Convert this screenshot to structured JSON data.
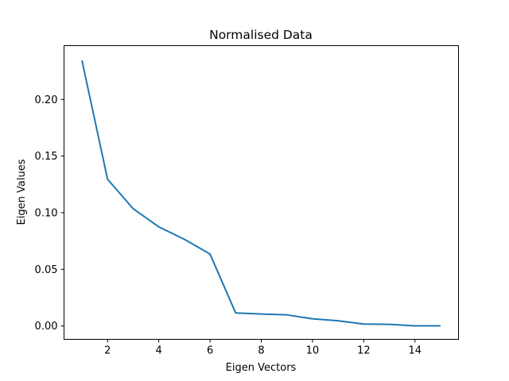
{
  "chart_data": {
    "type": "line",
    "title": "Normalised Data",
    "xlabel": "Eigen Vectors",
    "ylabel": "Eigen Values",
    "xlim": [
      0.3,
      15.7
    ],
    "ylim": [
      -0.0118,
      0.2475
    ],
    "xticks": [
      "2",
      "4",
      "6",
      "8",
      "10",
      "12",
      "14"
    ],
    "xtick_values": [
      2,
      4,
      6,
      8,
      10,
      12,
      14
    ],
    "yticks": [
      "0.00",
      "0.05",
      "0.10",
      "0.15",
      "0.20"
    ],
    "ytick_values": [
      0.0,
      0.05,
      0.1,
      0.15,
      0.2
    ],
    "grid": false,
    "series": [
      {
        "color": "#1f77b4",
        "x": [
          1,
          2,
          3,
          4,
          5,
          6,
          7,
          8,
          9,
          10,
          11,
          12,
          13,
          14,
          15
        ],
        "y": [
          0.2345,
          0.1295,
          0.1035,
          0.0875,
          0.0765,
          0.0635,
          0.0115,
          0.0105,
          0.0098,
          0.0063,
          0.0046,
          0.0017,
          0.0014,
          0.0001,
          0.0001
        ]
      }
    ]
  }
}
